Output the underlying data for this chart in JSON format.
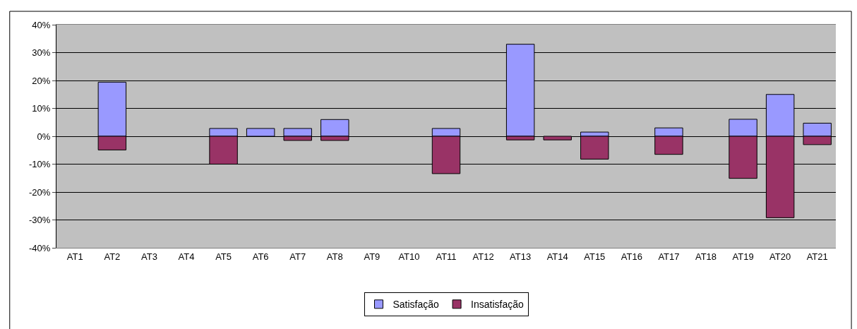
{
  "chart_data": {
    "type": "bar",
    "categories": [
      "AT1",
      "AT2",
      "AT3",
      "AT4",
      "AT5",
      "AT6",
      "AT7",
      "AT8",
      "AT9",
      "AT10",
      "AT11",
      "AT12",
      "AT13",
      "AT14",
      "AT15",
      "AT16",
      "AT17",
      "AT18",
      "AT19",
      "AT20",
      "AT21"
    ],
    "series": [
      {
        "name": "Satisfação",
        "color": "#9999ff",
        "values": [
          null,
          19.4,
          null,
          null,
          2.8,
          2.8,
          2.8,
          6.0,
          null,
          null,
          2.8,
          null,
          33.0,
          null,
          1.5,
          null,
          3.0,
          null,
          6.1,
          15.0,
          4.7
        ]
      },
      {
        "name": "Insatisfação",
        "color": "#993366",
        "values": [
          null,
          -4.9,
          null,
          null,
          -10.0,
          null,
          -1.5,
          -1.5,
          null,
          null,
          -13.4,
          null,
          -1.3,
          -1.3,
          -8.2,
          null,
          -6.5,
          null,
          -15.1,
          -29.2,
          -3.0
        ]
      }
    ],
    "stacked": true,
    "ylim": [
      -40,
      40
    ],
    "yticks": [
      {
        "value": -40,
        "label": "-40%"
      },
      {
        "value": -30,
        "label": "-30%"
      },
      {
        "value": -20,
        "label": "-20%"
      },
      {
        "value": -10,
        "label": "-10%"
      },
      {
        "value": 0,
        "label": "0%"
      },
      {
        "value": 10,
        "label": "10%"
      },
      {
        "value": 20,
        "label": "20%"
      },
      {
        "value": 30,
        "label": "30%"
      },
      {
        "value": 40,
        "label": "40%"
      }
    ],
    "grid": "y",
    "legend": "bottom"
  }
}
